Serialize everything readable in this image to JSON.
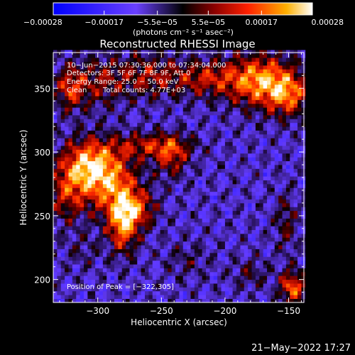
{
  "chart_data": {
    "type": "heatmap",
    "title": "Reconstructed RHESSI Image",
    "xlabel": "Heliocentric X (arcsec)",
    "ylabel": "Heliocentric Y (arcsec)",
    "xlim": [
      -335,
      -138
    ],
    "ylim": [
      182,
      378
    ],
    "xticks": [
      -300,
      -250,
      -200,
      -150
    ],
    "yticks": [
      200,
      250,
      300,
      350
    ],
    "xtick_labels": [
      "−300",
      "−250",
      "−200",
      "−150"
    ],
    "ytick_labels": [
      "200",
      "250",
      "300",
      "350"
    ],
    "colorbar": {
      "min": -0.00028,
      "max": 0.00028,
      "ticks": [
        -0.00028,
        -0.00017,
        -5.5e-05,
        5.5e-05,
        0.00017,
        0.00028
      ],
      "tick_labels": [
        "−0.00028",
        "−0.00017",
        "−5.5e−05",
        "5.5e−05",
        "0.00017",
        "0.00028"
      ],
      "unit_label": "(photons cm⁻² s⁻¹ asec⁻²)"
    },
    "annotations": [
      "10−Jun−2015 07:30:36.000 to 07:34:04.000",
      "Detectors: 3F 5F 6F 7F 8F 9F, Att 0",
      "Energy Range: 25.0 − 50.0 keV",
      "Clean",
      "Total counts: 4.77E+03"
    ],
    "peak_label": "Position of Peak = [−322,305]",
    "peak": [
      -322,
      305
    ],
    "sources": [
      {
        "x": -308,
        "y": 290,
        "sx": 14,
        "sy": 14,
        "amp": 0.00026
      },
      {
        "x": -290,
        "y": 275,
        "sx": 16,
        "sy": 18,
        "amp": 0.00022
      },
      {
        "x": -280,
        "y": 245,
        "sx": 8,
        "sy": 16,
        "amp": 0.00027
      },
      {
        "x": -268,
        "y": 255,
        "sx": 10,
        "sy": 10,
        "amp": 0.00016
      },
      {
        "x": -258,
        "y": 305,
        "sx": 22,
        "sy": 7,
        "amp": 0.00016
      },
      {
        "x": -242,
        "y": 296,
        "sx": 9,
        "sy": 11,
        "amp": 0.00015
      },
      {
        "x": -172,
        "y": 356,
        "sx": 18,
        "sy": 14,
        "amp": 0.00027
      },
      {
        "x": -150,
        "y": 345,
        "sx": 12,
        "sy": 12,
        "amp": 0.0002
      },
      {
        "x": -215,
        "y": 358,
        "sx": 20,
        "sy": 10,
        "amp": 0.00016
      },
      {
        "x": -262,
        "y": 360,
        "sx": 18,
        "sy": 12,
        "amp": 0.00014
      },
      {
        "x": -300,
        "y": 355,
        "sx": 14,
        "sy": 14,
        "amp": 0.00012
      },
      {
        "x": -322,
        "y": 350,
        "sx": 8,
        "sy": 12,
        "amp": 0.00018
      },
      {
        "x": -325,
        "y": 268,
        "sx": 10,
        "sy": 16,
        "amp": 0.00015
      },
      {
        "x": -147,
        "y": 194,
        "sx": 7,
        "sy": 9,
        "amp": 0.00024
      },
      {
        "x": -152,
        "y": 245,
        "sx": 6,
        "sy": 16,
        "amp": 0.0001
      },
      {
        "x": -180,
        "y": 205,
        "sx": 10,
        "sy": 8,
        "amp": 8e-05
      },
      {
        "x": -230,
        "y": 215,
        "sx": 12,
        "sy": 10,
        "amp": 6e-05
      },
      {
        "x": -312,
        "y": 222,
        "sx": 10,
        "sy": 10,
        "amp": 5e-05
      }
    ]
  },
  "timestamp": "21−May−2022 17:27"
}
